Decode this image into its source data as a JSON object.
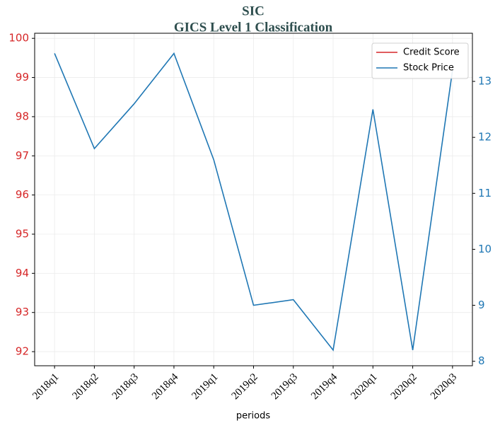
{
  "chart_data": {
    "type": "line",
    "title": "SIC",
    "subtitle": "GICS Level 1 Classification",
    "xlabel": "periods",
    "categories": [
      "2018q1",
      "2018q2",
      "2018q3",
      "2018q4",
      "2019q1",
      "2019q2",
      "2019q3",
      "2019q4",
      "2020q1",
      "2020q2",
      "2020q3"
    ],
    "series": [
      {
        "name": "Credit Score",
        "color": "#d62728",
        "values": [
          null,
          null,
          null,
          null,
          null,
          null,
          null,
          null,
          null,
          null,
          null
        ]
      },
      {
        "name": "Stock Price",
        "color": "#1f77b4",
        "axis": "y2",
        "values": [
          13.5,
          11.8,
          12.6,
          13.5,
          11.6,
          9.0,
          9.1,
          8.2,
          12.5,
          8.2,
          13.2
        ]
      }
    ],
    "ylim": [
      91.64,
      100.13
    ],
    "yticks": [
      92,
      93,
      94,
      95,
      96,
      97,
      98,
      99,
      100
    ],
    "y2lim": [
      7.92,
      13.86
    ],
    "y2ticks": [
      8,
      9,
      10,
      11,
      12,
      13
    ],
    "grid": true,
    "legend": "upper right"
  }
}
